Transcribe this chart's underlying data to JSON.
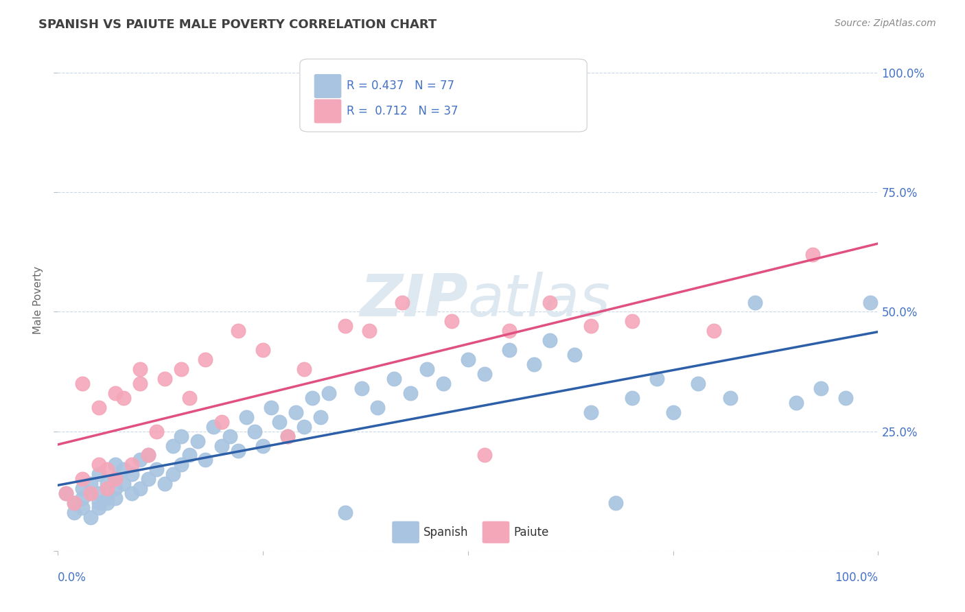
{
  "title": "SPANISH VS PAIUTE MALE POVERTY CORRELATION CHART",
  "source_text": "Source: ZipAtlas.com",
  "ylabel": "Male Poverty",
  "xlim": [
    0.0,
    1.0
  ],
  "ylim": [
    0.0,
    1.05
  ],
  "spanish_R": 0.437,
  "spanish_N": 77,
  "paiute_R": 0.712,
  "paiute_N": 37,
  "spanish_color": "#a8c4e0",
  "paiute_color": "#f4a7b9",
  "spanish_line_color": "#2c5fa8",
  "paiute_line_color": "#e05080",
  "legend_text_color": "#4472c4",
  "title_color": "#404040",
  "watermark_zip": "ZIP",
  "watermark_atlas": "atlas",
  "watermark_color": "#dde8f0",
  "grid_color": "#c8d8e8",
  "background_color": "#ffffff",
  "spanish_x": [
    0.01,
    0.02,
    0.02,
    0.03,
    0.03,
    0.03,
    0.04,
    0.04,
    0.04,
    0.05,
    0.05,
    0.05,
    0.05,
    0.06,
    0.06,
    0.06,
    0.07,
    0.07,
    0.07,
    0.07,
    0.08,
    0.08,
    0.09,
    0.09,
    0.1,
    0.1,
    0.11,
    0.11,
    0.12,
    0.13,
    0.14,
    0.14,
    0.15,
    0.15,
    0.16,
    0.17,
    0.18,
    0.19,
    0.2,
    0.21,
    0.22,
    0.23,
    0.24,
    0.25,
    0.26,
    0.27,
    0.28,
    0.29,
    0.3,
    0.31,
    0.32,
    0.33,
    0.35,
    0.37,
    0.39,
    0.41,
    0.43,
    0.45,
    0.47,
    0.5,
    0.52,
    0.55,
    0.58,
    0.6,
    0.63,
    0.65,
    0.68,
    0.7,
    0.73,
    0.75,
    0.78,
    0.82,
    0.85,
    0.9,
    0.93,
    0.96,
    0.99
  ],
  "spanish_y": [
    0.12,
    0.08,
    0.1,
    0.13,
    0.09,
    0.11,
    0.07,
    0.14,
    0.12,
    0.1,
    0.16,
    0.12,
    0.09,
    0.14,
    0.11,
    0.1,
    0.15,
    0.13,
    0.11,
    0.18,
    0.14,
    0.17,
    0.12,
    0.16,
    0.13,
    0.19,
    0.15,
    0.2,
    0.17,
    0.14,
    0.22,
    0.16,
    0.18,
    0.24,
    0.2,
    0.23,
    0.19,
    0.26,
    0.22,
    0.24,
    0.21,
    0.28,
    0.25,
    0.22,
    0.3,
    0.27,
    0.24,
    0.29,
    0.26,
    0.32,
    0.28,
    0.33,
    0.08,
    0.34,
    0.3,
    0.36,
    0.33,
    0.38,
    0.35,
    0.4,
    0.37,
    0.42,
    0.39,
    0.44,
    0.41,
    0.29,
    0.1,
    0.32,
    0.36,
    0.29,
    0.35,
    0.32,
    0.52,
    0.31,
    0.34,
    0.32,
    0.52
  ],
  "paiute_x": [
    0.01,
    0.02,
    0.03,
    0.03,
    0.04,
    0.05,
    0.05,
    0.06,
    0.06,
    0.07,
    0.07,
    0.08,
    0.09,
    0.1,
    0.1,
    0.11,
    0.12,
    0.13,
    0.15,
    0.16,
    0.18,
    0.2,
    0.22,
    0.25,
    0.28,
    0.3,
    0.35,
    0.38,
    0.42,
    0.48,
    0.52,
    0.55,
    0.6,
    0.65,
    0.7,
    0.8,
    0.92
  ],
  "paiute_y": [
    0.12,
    0.1,
    0.15,
    0.35,
    0.12,
    0.18,
    0.3,
    0.13,
    0.17,
    0.15,
    0.33,
    0.32,
    0.18,
    0.35,
    0.38,
    0.2,
    0.25,
    0.36,
    0.38,
    0.32,
    0.4,
    0.27,
    0.46,
    0.42,
    0.24,
    0.38,
    0.47,
    0.46,
    0.52,
    0.48,
    0.2,
    0.46,
    0.52,
    0.47,
    0.48,
    0.46,
    0.62
  ]
}
